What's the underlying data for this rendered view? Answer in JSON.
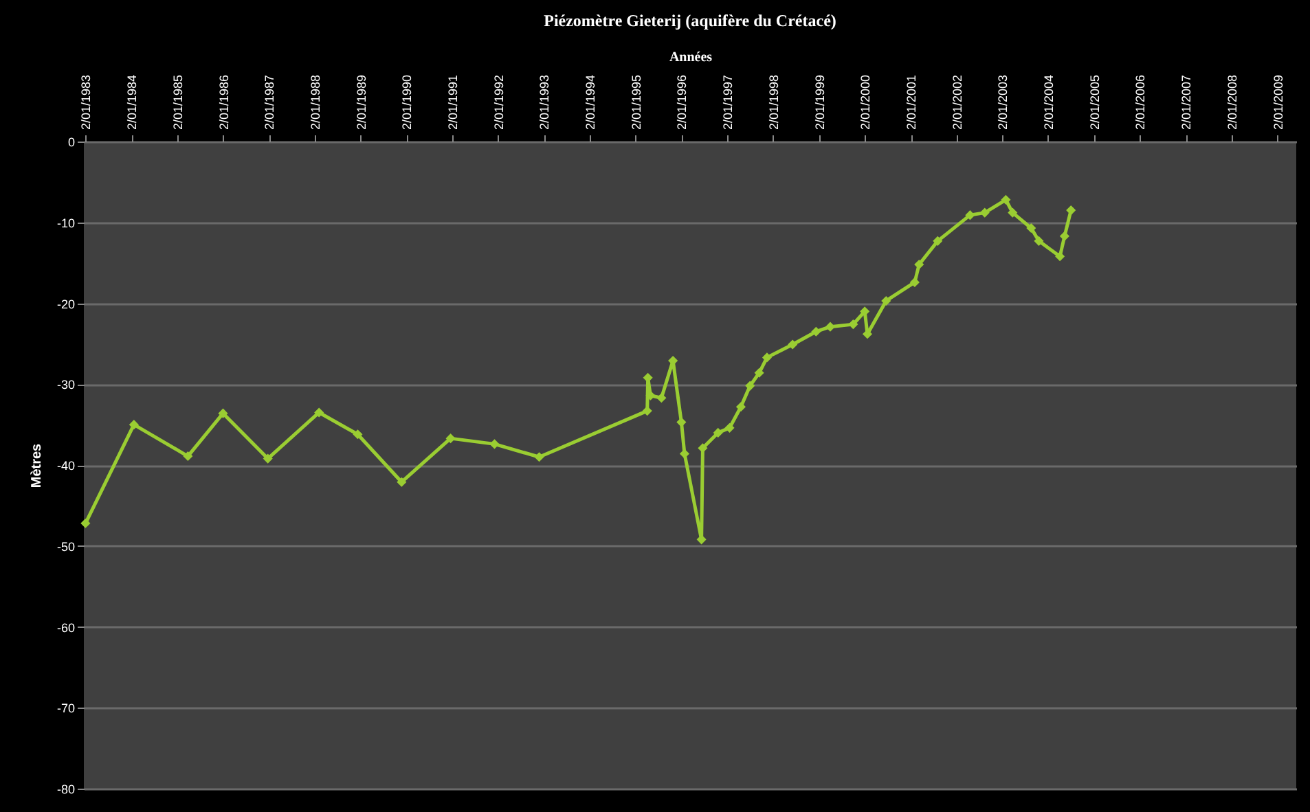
{
  "chart_data": {
    "type": "line",
    "title": "Piézomètre Gieterij (aquifère du Crétacé)",
    "xlabel": "Années",
    "ylabel": "Mètres",
    "x": [
      "1983-01-02",
      "1984-01-23",
      "1985-03-28",
      "1986-01-02",
      "1986-12-25",
      "1988-02-06",
      "1988-12-10",
      "1989-11-25",
      "1990-12-20",
      "1991-12-05",
      "1992-11-25",
      "1995-04-05",
      "1995-04-10",
      "1995-05-01",
      "1995-07-27",
      "1995-10-27",
      "1996-01-02",
      "1996-01-27",
      "1996-06-10",
      "1996-06-20",
      "1996-10-20",
      "1997-01-20",
      "1997-04-20",
      "1997-07-02",
      "1997-09-13",
      "1997-11-14",
      "1998-06-06",
      "1998-12-10",
      "1999-04-02",
      "1999-10-02",
      "2000-01-02",
      "2000-01-23",
      "2000-06-20",
      "2001-02-03",
      "2001-03-10",
      "2001-08-05",
      "2002-04-20",
      "2002-08-15",
      "2003-01-30",
      "2003-03-25",
      "2003-08-20",
      "2003-10-20",
      "2004-04-05",
      "2004-05-12",
      "2004-07-02"
    ],
    "series": [
      {
        "color": "#9acd32",
        "values": [
          -47.2,
          -35.0,
          -38.9,
          -33.6,
          -39.2,
          -33.5,
          -36.2,
          -42.1,
          -36.7,
          -37.4,
          -39.0,
          -33.3,
          -29.2,
          -31.4,
          -31.7,
          -27.1,
          -34.7,
          -38.6,
          -49.2,
          -37.9,
          -36.0,
          -35.4,
          -32.8,
          -30.2,
          -28.6,
          -26.7,
          -25.1,
          -23.5,
          -22.9,
          -22.6,
          -21.0,
          -23.8,
          -19.7,
          -17.4,
          -15.2,
          -12.3,
          -9.1,
          -8.8,
          -7.2,
          -8.8,
          -10.7,
          -12.3,
          -14.2,
          -11.7,
          -8.5
        ]
      }
    ],
    "xlim": [
      "1982-12-20",
      "2009-06-01"
    ],
    "xticks": [
      {
        "value": "1983-01-02",
        "label": "2/01/1983"
      },
      {
        "value": "1984-01-02",
        "label": "2/01/1984"
      },
      {
        "value": "1985-01-02",
        "label": "2/01/1985"
      },
      {
        "value": "1986-01-02",
        "label": "2/01/1986"
      },
      {
        "value": "1987-01-02",
        "label": "2/01/1987"
      },
      {
        "value": "1988-01-02",
        "label": "2/01/1988"
      },
      {
        "value": "1989-01-02",
        "label": "2/01/1989"
      },
      {
        "value": "1990-01-02",
        "label": "2/01/1990"
      },
      {
        "value": "1991-01-02",
        "label": "2/01/1991"
      },
      {
        "value": "1992-01-02",
        "label": "2/01/1992"
      },
      {
        "value": "1993-01-02",
        "label": "2/01/1993"
      },
      {
        "value": "1994-01-02",
        "label": "2/01/1994"
      },
      {
        "value": "1995-01-02",
        "label": "2/01/1995"
      },
      {
        "value": "1996-01-02",
        "label": "2/01/1996"
      },
      {
        "value": "1997-01-02",
        "label": "2/01/1997"
      },
      {
        "value": "1998-01-02",
        "label": "2/01/1998"
      },
      {
        "value": "1999-01-02",
        "label": "2/01/1999"
      },
      {
        "value": "2000-01-02",
        "label": "2/01/2000"
      },
      {
        "value": "2001-01-02",
        "label": "2/01/2001"
      },
      {
        "value": "2002-01-02",
        "label": "2/01/2002"
      },
      {
        "value": "2003-01-02",
        "label": "2/01/2003"
      },
      {
        "value": "2004-01-02",
        "label": "2/01/2004"
      },
      {
        "value": "2005-01-02",
        "label": "2/01/2005"
      },
      {
        "value": "2006-01-02",
        "label": "2/01/2006"
      },
      {
        "value": "2007-01-02",
        "label": "2/01/2007"
      },
      {
        "value": "2008-01-02",
        "label": "2/01/2008"
      },
      {
        "value": "2009-01-02",
        "label": "2/01/2009"
      }
    ],
    "ylim": [
      -80,
      0
    ],
    "yticks": [
      -80,
      -70,
      -60,
      -50,
      -40,
      -30,
      -20,
      -10,
      0
    ],
    "grid": "y",
    "legend": false,
    "marker": "diamond",
    "line_style": "solid"
  }
}
